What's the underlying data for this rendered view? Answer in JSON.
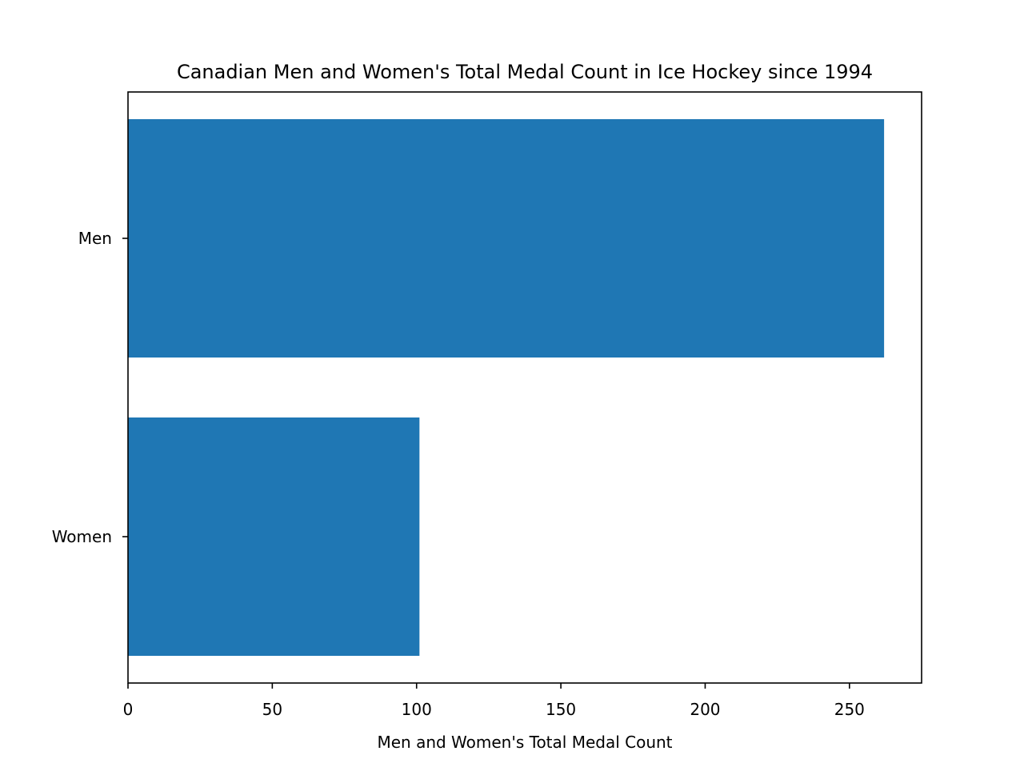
{
  "chart_data": {
    "type": "bar",
    "orientation": "horizontal",
    "title": "Canadian Men and Women's Total Medal Count in Ice Hockey since 1994",
    "xlabel": "Men and Women's Total Medal Count",
    "ylabel": "",
    "categories": [
      "Men",
      "Women"
    ],
    "values": [
      262,
      101
    ],
    "xlim": [
      0,
      275
    ],
    "xticks": [
      0,
      50,
      100,
      150,
      200,
      250
    ],
    "xtick_labels": [
      "0",
      "50",
      "100",
      "150",
      "200",
      "250"
    ],
    "grid": false,
    "legend": "none",
    "bar_color": "#1f77b4"
  }
}
